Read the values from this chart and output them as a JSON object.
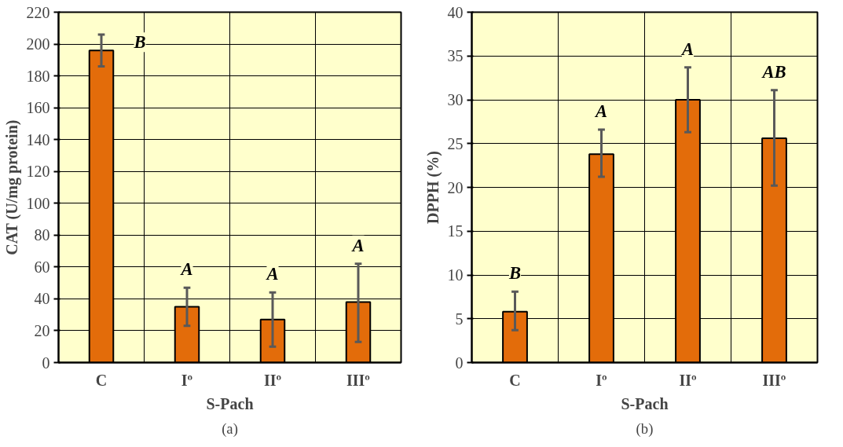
{
  "chart_data": [
    {
      "type": "bar",
      "xlabel": "S-Pach",
      "ylabel": "CAT (U/mg protein)",
      "categories": [
        "C",
        "Iº",
        "IIº",
        "IIIº"
      ],
      "series": [
        {
          "color": "#e36c0a",
          "values": [
            196,
            35,
            27,
            38
          ],
          "errors": [
            [
              186,
              206
            ],
            [
              23,
              47
            ],
            [
              10,
              44
            ],
            [
              13,
              62
            ]
          ]
        }
      ],
      "ylim": [
        0,
        220
      ],
      "yticks": [
        0,
        20,
        40,
        60,
        80,
        100,
        120,
        140,
        160,
        180,
        200,
        220
      ],
      "grid": true,
      "annotations": [
        "B",
        "A",
        "A",
        "A",
        "(a)"
      ]
    },
    {
      "type": "bar",
      "xlabel": "S-Pach",
      "ylabel": "DPPH (%)",
      "categories": [
        "C",
        "Iº",
        "IIº",
        "IIIº"
      ],
      "series": [
        {
          "color": "#e36c0a",
          "values": [
            5.8,
            23.8,
            30.0,
            25.6
          ],
          "errors": [
            [
              3.7,
              8.1
            ],
            [
              21.2,
              26.6
            ],
            [
              26.3,
              33.7
            ],
            [
              20.2,
              31.1
            ]
          ]
        }
      ],
      "ylim": [
        0,
        40
      ],
      "yticks": [
        0,
        5,
        10,
        15,
        20,
        25,
        30,
        35,
        40
      ],
      "grid": true,
      "annotations": [
        "B",
        "A",
        "A",
        "AB",
        "(b)"
      ]
    }
  ]
}
